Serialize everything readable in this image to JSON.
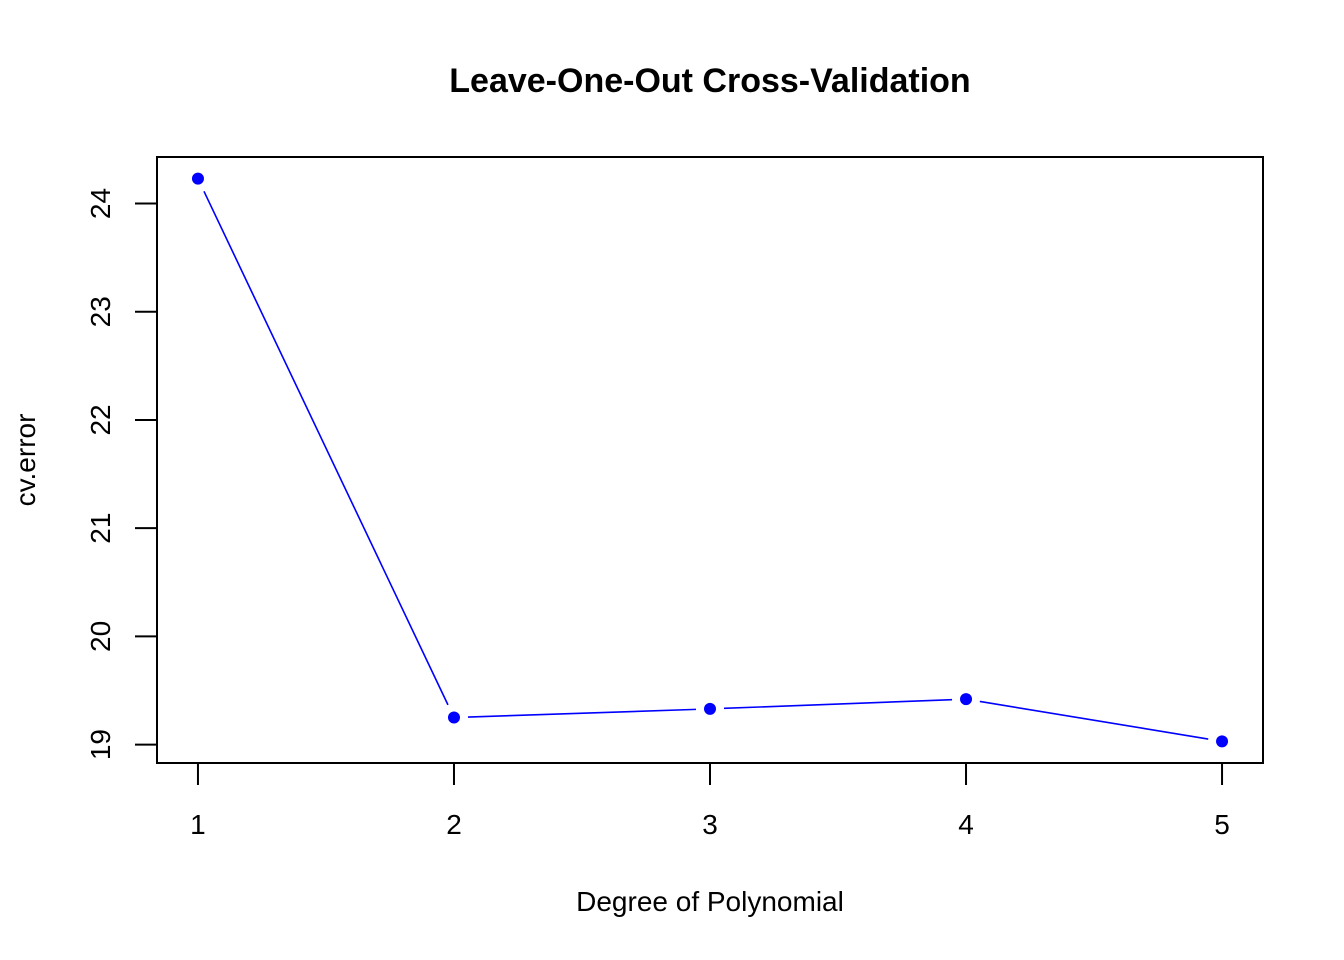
{
  "chart_data": {
    "type": "line",
    "title": "Leave-One-Out Cross-Validation",
    "xlabel": "Degree of Polynomial",
    "ylabel": "cv.error",
    "x": [
      1,
      2,
      3,
      4,
      5
    ],
    "x_ticks": [
      "1",
      "2",
      "3",
      "4",
      "5"
    ],
    "y_ticks": [
      "19",
      "20",
      "21",
      "22",
      "23",
      "24"
    ],
    "xlim": [
      0.84,
      5.16
    ],
    "ylim": [
      18.83,
      24.43
    ],
    "series": [
      {
        "values": [
          24.23,
          19.25,
          19.33,
          19.42,
          19.03
        ],
        "color": "#0000ff",
        "marker": "filled-circle",
        "line": "solid"
      }
    ],
    "grid": false,
    "legend": "none"
  }
}
